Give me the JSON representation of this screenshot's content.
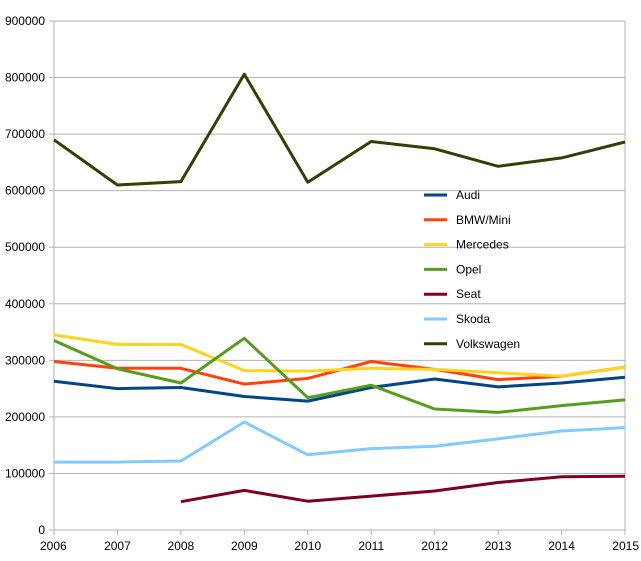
{
  "chart_data": {
    "type": "line",
    "title": "",
    "xlabel": "",
    "ylabel": "",
    "x": [
      2006,
      2007,
      2008,
      2009,
      2010,
      2011,
      2012,
      2013,
      2014,
      2015
    ],
    "ylim": [
      0,
      900000
    ],
    "yticks": [
      0,
      100000,
      200000,
      300000,
      400000,
      500000,
      600000,
      700000,
      800000,
      900000
    ],
    "ytick_labels": [
      "0",
      "100000",
      "200000",
      "300000",
      "400000",
      "500000",
      "600000",
      "700000",
      "800000",
      "900000"
    ],
    "xtick_labels": [
      "2006",
      "2007",
      "2008",
      "2009",
      "2010",
      "2011",
      "2012",
      "2013",
      "2014",
      "2015"
    ],
    "grid": "horizontal",
    "legend_position": "center-right",
    "series": [
      {
        "name": "Audi",
        "color": "#004586",
        "values": [
          263000,
          250000,
          252000,
          236000,
          228000,
          252000,
          267000,
          253000,
          260000,
          270000
        ]
      },
      {
        "name": "BMW/Mini",
        "color": "#ff420e",
        "values": [
          298000,
          286000,
          286000,
          258000,
          268000,
          298000,
          284000,
          266000,
          272000,
          288000
        ]
      },
      {
        "name": "Mercedes",
        "color": "#ffd320",
        "values": [
          345000,
          328000,
          328000,
          282000,
          281000,
          286000,
          284000,
          278000,
          272000,
          288000
        ]
      },
      {
        "name": "Opel",
        "color": "#579d1c",
        "values": [
          335000,
          285000,
          260000,
          339000,
          234000,
          256000,
          214000,
          208000,
          220000,
          230000
        ]
      },
      {
        "name": "Seat",
        "color": "#7e0021",
        "values": [
          null,
          null,
          50000,
          70000,
          51000,
          60000,
          69000,
          84000,
          94000,
          95000
        ]
      },
      {
        "name": "Skoda",
        "color": "#83caff",
        "values": [
          120000,
          120000,
          122000,
          191000,
          133000,
          144000,
          148000,
          161000,
          175000,
          181000
        ]
      },
      {
        "name": "Volkswagen",
        "color": "#314004",
        "values": [
          690000,
          610000,
          616000,
          806000,
          615000,
          687000,
          674000,
          643000,
          658000,
          686000
        ]
      }
    ]
  }
}
